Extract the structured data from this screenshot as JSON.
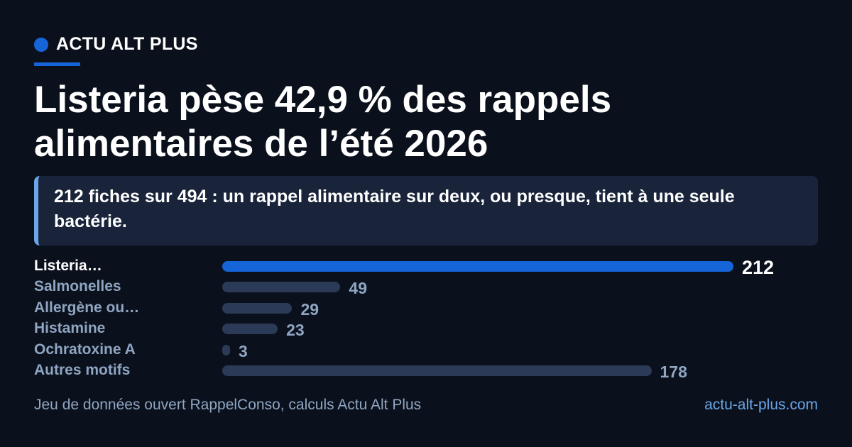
{
  "brand": {
    "name": "ACTU ALT PLUS",
    "accent_color": "#1565d8"
  },
  "headline": "Listeria pèse 42,9 % des rappels alimentaires de l’été 2026",
  "callout": "212 fiches sur 494 : un rappel alimentaire sur deux, ou presque, tient à une seule bactérie.",
  "chart_data": {
    "type": "bar",
    "orientation": "horizontal",
    "title": "",
    "xlabel": "",
    "ylabel": "",
    "categories": [
      "Listeria…",
      "Salmonelles",
      "Allergène ou…",
      "Histamine",
      "Ochratoxine A",
      "Autres motifs"
    ],
    "values": [
      212,
      49,
      29,
      23,
      3,
      178
    ],
    "xlim": [
      0,
      212
    ],
    "grid": false,
    "highlight_color": "#1565d8",
    "bar_color": "#2b3a56"
  },
  "footer": {
    "source": "Jeu de données ouvert RappelConso, calculs Actu Alt Plus",
    "site": "actu-alt-plus.com"
  }
}
